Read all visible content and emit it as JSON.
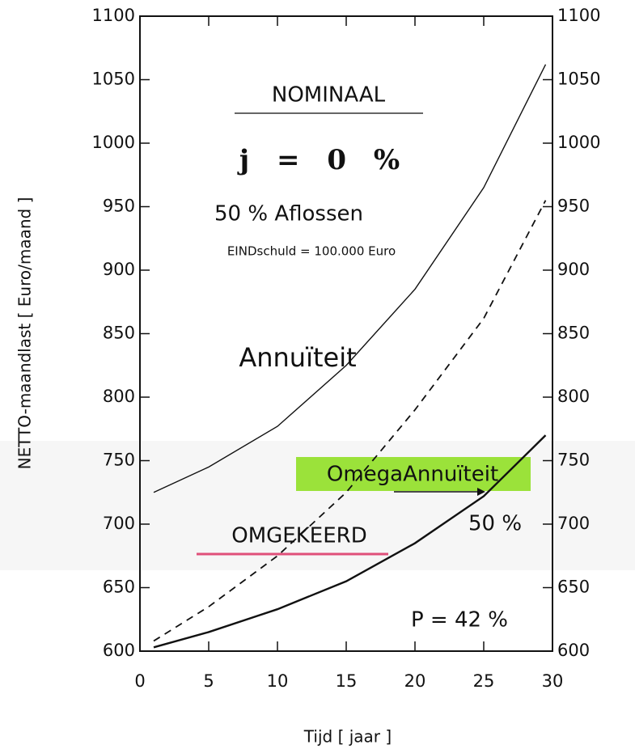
{
  "chart_data": {
    "type": "line",
    "x": [
      1,
      5,
      10,
      15,
      20,
      25,
      29.5
    ],
    "series": [
      {
        "color": "#111111",
        "dash": "solid",
        "width": 1.4,
        "values": [
          725,
          745,
          777,
          825,
          885,
          965,
          1062
        ]
      },
      {
        "color": "#111111",
        "dash": "dashed",
        "width": 1.8,
        "values": [
          608,
          635,
          675,
          725,
          790,
          862,
          955
        ]
      },
      {
        "color": "#111111",
        "dash": "solid",
        "width": 2.4,
        "values": [
          603,
          615,
          633,
          655,
          685,
          722,
          770
        ]
      }
    ],
    "xlim": [
      0,
      30
    ],
    "xticks": [
      0,
      5,
      10,
      15,
      20,
      25,
      30
    ],
    "ylim": [
      600,
      1100
    ],
    "yticks": [
      600,
      650,
      700,
      750,
      800,
      850,
      900,
      950,
      1000,
      1050,
      1100
    ],
    "y2lim": [
      600,
      1100
    ],
    "y2ticks": [
      600,
      650,
      700,
      750,
      800,
      850,
      900,
      950,
      1000,
      1050,
      1100
    ],
    "xlabel": "Tijd [ jaar ]",
    "ylabel": "NETTO-maandlast [ Euro/maand ]",
    "annotations": [
      "NOMINAAL",
      "j = 0 %",
      "50 % Aflossen",
      "EINDschuld = 100.000 Euro",
      "Annuïteit",
      "OmegaAnnuïteit",
      "50 %",
      "OMGEKEERD",
      "P = 42 %"
    ]
  }
}
